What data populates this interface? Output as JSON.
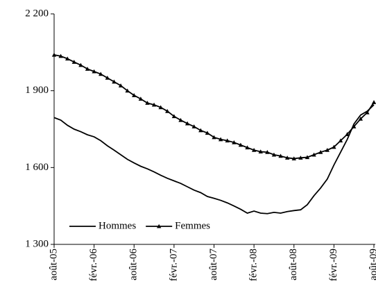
{
  "chart_data": {
    "type": "line",
    "categories": [
      "août-05",
      null,
      null,
      null,
      null,
      null,
      "févr.-06",
      null,
      null,
      null,
      null,
      null,
      "août-06",
      null,
      null,
      null,
      null,
      null,
      "févr.-07",
      null,
      null,
      null,
      null,
      null,
      "août-07",
      null,
      null,
      null,
      null,
      null,
      "févr.-08",
      null,
      null,
      null,
      null,
      null,
      "août-08",
      null,
      null,
      null,
      null,
      null,
      "févr.-09",
      null,
      null,
      null,
      null,
      null,
      "août-09"
    ],
    "series": [
      {
        "name": "Hommes",
        "color": "#000000",
        "marker": "none",
        "values": [
          1795,
          1785,
          1765,
          1750,
          1740,
          1728,
          1720,
          1705,
          1685,
          1668,
          1650,
          1632,
          1618,
          1605,
          1595,
          1583,
          1570,
          1558,
          1548,
          1538,
          1525,
          1512,
          1502,
          1487,
          1480,
          1472,
          1462,
          1450,
          1437,
          1422,
          1430,
          1422,
          1420,
          1425,
          1422,
          1428,
          1432,
          1435,
          1455,
          1490,
          1520,
          1555,
          1610,
          1660,
          1710,
          1770,
          1805,
          1820,
          1845
        ]
      },
      {
        "name": "Femmes",
        "color": "#000000",
        "marker": "triangle",
        "values": [
          2040,
          2035,
          2025,
          2012,
          2000,
          1985,
          1975,
          1965,
          1950,
          1935,
          1920,
          1900,
          1882,
          1868,
          1852,
          1845,
          1835,
          1820,
          1800,
          1785,
          1772,
          1760,
          1745,
          1735,
          1718,
          1710,
          1705,
          1698,
          1688,
          1678,
          1668,
          1662,
          1660,
          1650,
          1645,
          1638,
          1635,
          1638,
          1640,
          1650,
          1660,
          1668,
          1680,
          1705,
          1730,
          1760,
          1790,
          1815,
          1855
        ]
      }
    ],
    "ylim": [
      1300,
      2200
    ],
    "yticks": [
      {
        "value": 1300,
        "label": "1 300"
      },
      {
        "value": 1600,
        "label": "1 600"
      },
      {
        "value": 1900,
        "label": "1 900"
      },
      {
        "value": 2200,
        "label": "2 200"
      }
    ],
    "legend": "lower left",
    "grid": false
  }
}
